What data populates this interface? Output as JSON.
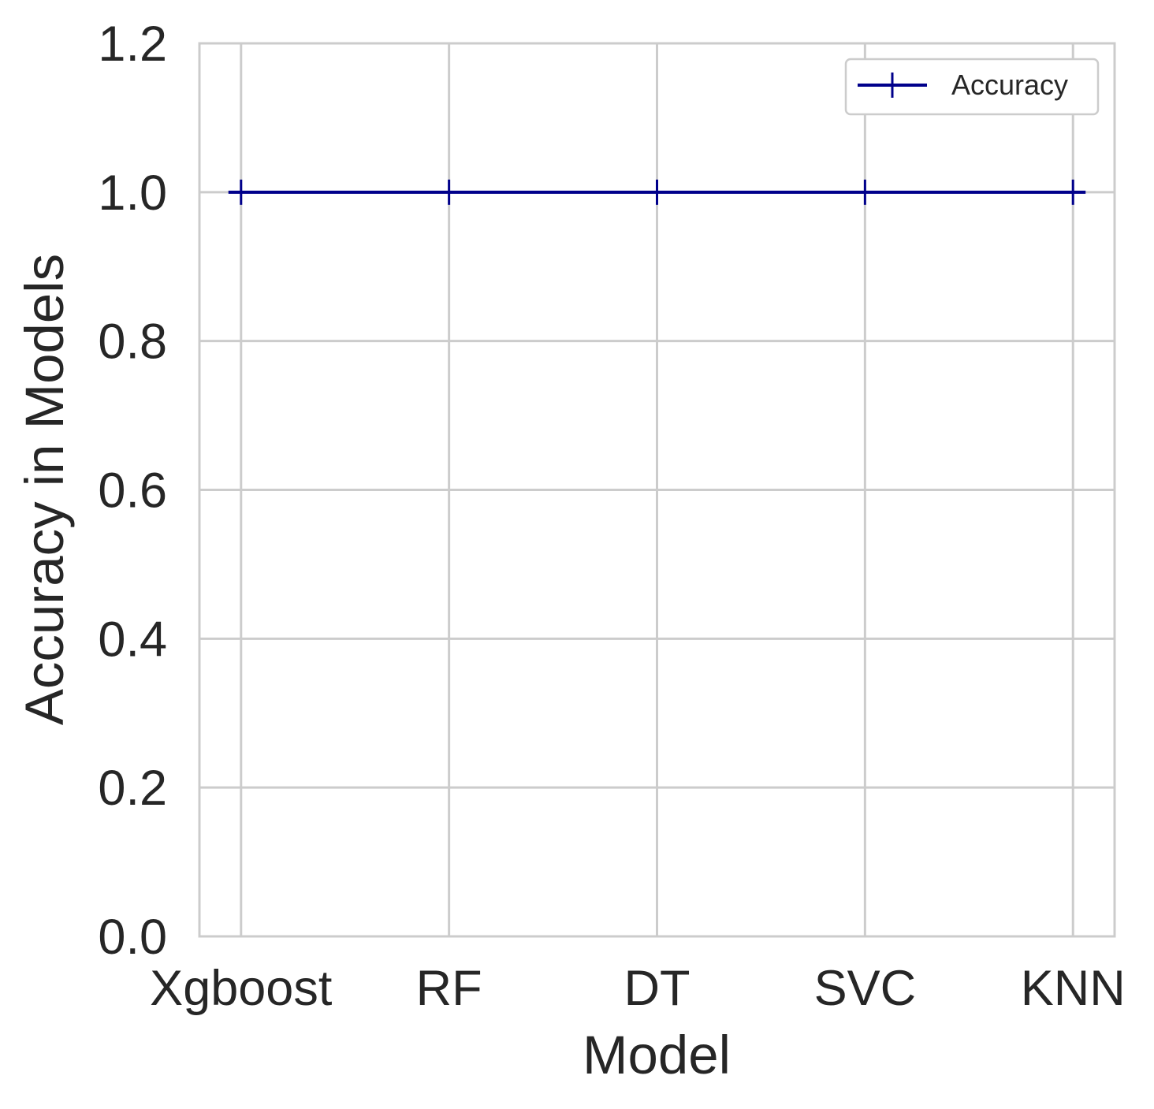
{
  "chart_data": {
    "type": "line",
    "categories": [
      "Xgboost",
      "RF",
      "DT",
      "SVC",
      "KNN"
    ],
    "series": [
      {
        "name": "Accuracy",
        "values": [
          1.0,
          1.0,
          1.0,
          1.0,
          1.0
        ],
        "color": "#00008b",
        "marker": "plus"
      }
    ],
    "xlabel": "Model",
    "ylabel": "Accuracy in Models",
    "ylim": [
      0.0,
      1.2
    ],
    "yticks": [
      "0.0",
      "0.2",
      "0.4",
      "0.6",
      "0.8",
      "1.0",
      "1.2"
    ],
    "grid": true,
    "legend": {
      "placement": "upper-right",
      "entries": [
        "Accuracy"
      ]
    },
    "colors": {
      "grid": "#cccccc",
      "frame": "#cccccc",
      "text": "#262626",
      "background": "#ffffff"
    }
  }
}
